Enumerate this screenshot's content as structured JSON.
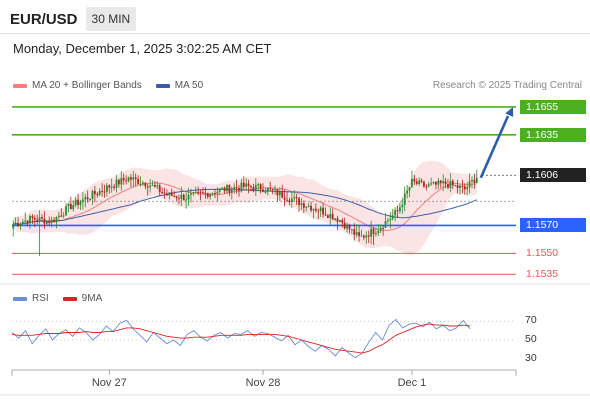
{
  "header": {
    "symbol": "EUR/USD",
    "timeframe": "30 MIN",
    "datetime": "Monday, December 1, 2025 3:02:25 AM CET"
  },
  "legend": {
    "ma20_label": "MA 20 + Bollinger Bands",
    "ma50_label": "MA 50",
    "credit": "Research © 2025 Trading Central"
  },
  "rsi_legend": {
    "rsi_label": "RSI",
    "ma_label": "9MA"
  },
  "colors": {
    "ma20": "#f08080",
    "ma50": "#3a5fa8",
    "up": "#2e8b2e",
    "down": "#b22222",
    "resistance": "#4caf20",
    "current": "#222222",
    "pivot": "#2962ff",
    "support": "#e05a5a",
    "rsi": "#6b8ed6",
    "rsi_ma": "#dd2222",
    "arrow": "#2a5fa8"
  },
  "chart_data": {
    "type": "candlestick",
    "symbol": "EUR/USD",
    "timeframe": "30 MIN",
    "x_tick_labels": [
      "Nov 27",
      "Nov 28",
      "Dec 1"
    ],
    "levels": [
      {
        "label": "1.1655",
        "value": 1.1655,
        "kind": "resistance"
      },
      {
        "label": "1.1635",
        "value": 1.1635,
        "kind": "resistance"
      },
      {
        "label": "1.1606",
        "value": 1.1606,
        "kind": "current"
      },
      {
        "label": "1.1570",
        "value": 1.157,
        "kind": "pivot"
      },
      {
        "label": "1.1550",
        "value": 1.155,
        "kind": "support"
      },
      {
        "label": "1.1535",
        "value": 1.1535,
        "kind": "support"
      }
    ],
    "forecast_target": 1.1655,
    "price_axis_range": [
      1.1528,
      1.166
    ],
    "close_anchors": [
      [
        0,
        1.1571
      ],
      [
        8,
        1.1575
      ],
      [
        16,
        1.1573
      ],
      [
        24,
        1.1584
      ],
      [
        32,
        1.1591
      ],
      [
        40,
        1.1598
      ],
      [
        48,
        1.1604
      ],
      [
        56,
        1.16
      ],
      [
        64,
        1.1592
      ],
      [
        72,
        1.159
      ],
      [
        80,
        1.1593
      ],
      [
        88,
        1.1596
      ],
      [
        96,
        1.1598
      ],
      [
        104,
        1.1597
      ],
      [
        112,
        1.1592
      ],
      [
        120,
        1.1586
      ],
      [
        128,
        1.1581
      ],
      [
        136,
        1.1574
      ],
      [
        144,
        1.1561
      ],
      [
        152,
        1.1568
      ],
      [
        160,
        1.158
      ],
      [
        166,
        1.1601
      ],
      [
        172,
        1.1598
      ],
      [
        180,
        1.16
      ],
      [
        188,
        1.1596
      ],
      [
        193,
        1.1605
      ]
    ],
    "spikes": [
      {
        "index": 11,
        "low": 1.1548
      },
      {
        "index": 150,
        "low": 1.1556
      }
    ],
    "rsi": {
      "levels": [
        70,
        50,
        30
      ],
      "range": [
        20,
        80
      ],
      "values": [
        58,
        52,
        60,
        46,
        55,
        62,
        50,
        57,
        61,
        54,
        63,
        58,
        50,
        56,
        65,
        59,
        68,
        71,
        62,
        55,
        48,
        58,
        52,
        46,
        50,
        44,
        56,
        60,
        53,
        49,
        55,
        58,
        52,
        57,
        56,
        60,
        54,
        58,
        57,
        53,
        49,
        55,
        45,
        50,
        43,
        38,
        44,
        40,
        33,
        42,
        36,
        31,
        36,
        48,
        58,
        50,
        66,
        72,
        63,
        67,
        68,
        64,
        69,
        62,
        66,
        60,
        63,
        71,
        62
      ],
      "ma": [
        56,
        55,
        55,
        55,
        56,
        57,
        57,
        57,
        58,
        58,
        58,
        59,
        58,
        58,
        59,
        59,
        61,
        63,
        63,
        62,
        60,
        58,
        56,
        54,
        53,
        52,
        52,
        53,
        53,
        53,
        54,
        55,
        55,
        55,
        55,
        56,
        56,
        56,
        56,
        56,
        55,
        54,
        52,
        50,
        48,
        46,
        44,
        42,
        40,
        39,
        38,
        37,
        36,
        38,
        42,
        45,
        50,
        55,
        58,
        61,
        64,
        66,
        67,
        66,
        66,
        65,
        65,
        66,
        65
      ]
    }
  }
}
